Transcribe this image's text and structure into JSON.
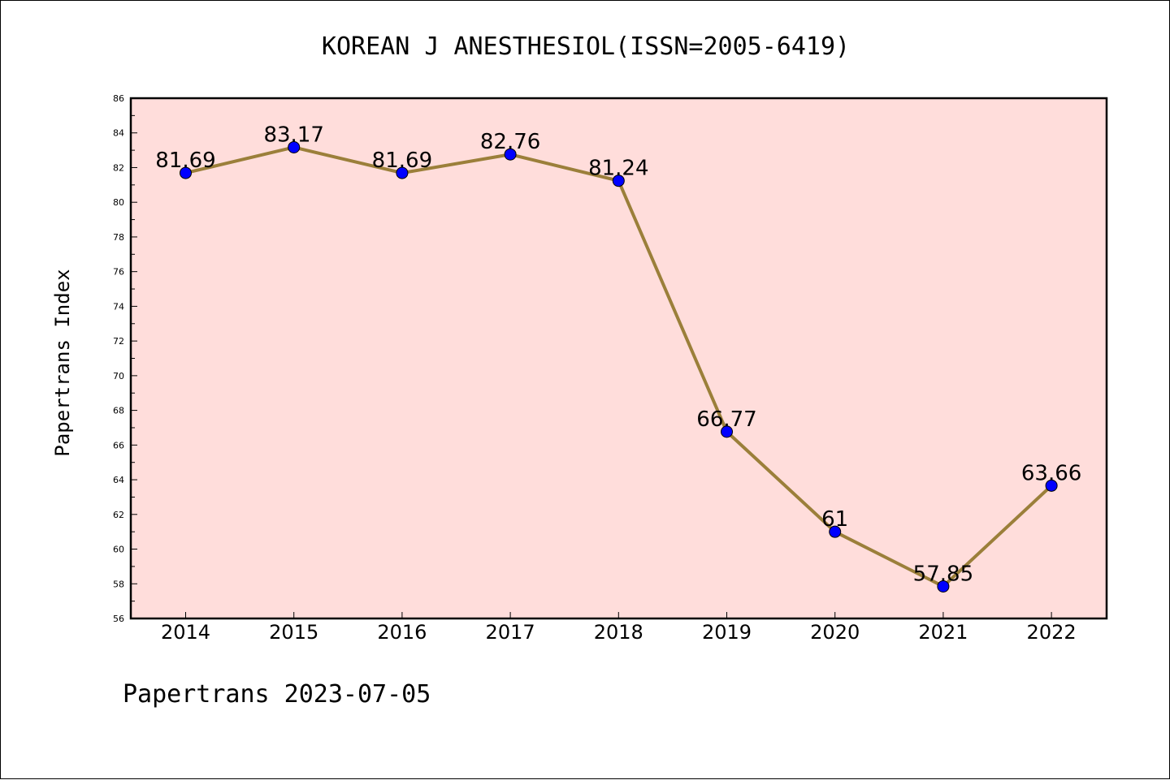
{
  "title": "KOREAN J ANESTHESIOL(ISSN=2005-6419)",
  "footer": "Papertrans 2023-07-05",
  "colors": {
    "plot_background": "#FFDDDB",
    "line": "#9B7F3A",
    "marker": "#0000FF",
    "axis": "#000000"
  },
  "chart_data": {
    "type": "line",
    "title": "KOREAN J ANESTHESIOL(ISSN=2005-6419)",
    "xlabel": "",
    "ylabel": "Papertrans Index",
    "categories": [
      "2014",
      "2015",
      "2016",
      "2017",
      "2018",
      "2019",
      "2020",
      "2021",
      "2022"
    ],
    "values": [
      81.69,
      83.17,
      81.69,
      82.76,
      81.24,
      66.77,
      61,
      57.85,
      63.66
    ],
    "data_labels": [
      "81.69",
      "83.17",
      "81.69",
      "82.76",
      "81.24",
      "66.77",
      "61",
      "57.85",
      "63.66"
    ],
    "ylim": [
      56,
      86
    ],
    "yticks": [
      56,
      58,
      60,
      62,
      64,
      66,
      68,
      70,
      72,
      74,
      76,
      78,
      80,
      82,
      84,
      86
    ],
    "grid": false,
    "legend": "none"
  }
}
